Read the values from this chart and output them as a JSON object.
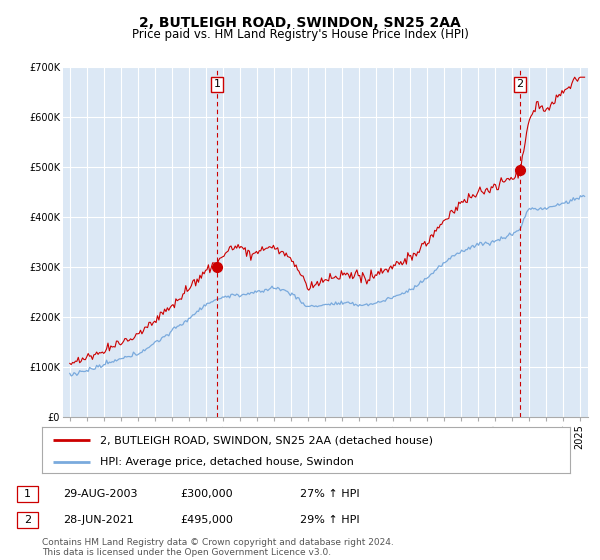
{
  "title": "2, BUTLEIGH ROAD, SWINDON, SN25 2AA",
  "subtitle": "Price paid vs. HM Land Registry's House Price Index (HPI)",
  "ylim": [
    0,
    700000
  ],
  "yticks": [
    0,
    100000,
    200000,
    300000,
    400000,
    500000,
    600000,
    700000
  ],
  "ytick_labels": [
    "£0",
    "£100K",
    "£200K",
    "£300K",
    "£400K",
    "£500K",
    "£600K",
    "£700K"
  ],
  "xlim_start": 1994.6,
  "xlim_end": 2025.5,
  "background_color": "#ffffff",
  "plot_bg_color": "#dce8f5",
  "grid_color": "#ffffff",
  "line1_color": "#cc0000",
  "line2_color": "#7aaadd",
  "marker_color": "#cc0000",
  "vline_color": "#cc0000",
  "transaction1_x": 2003.66,
  "transaction1_y": 300000,
  "transaction2_x": 2021.49,
  "transaction2_y": 495000,
  "legend_line1": "2, BUTLEIGH ROAD, SWINDON, SN25 2AA (detached house)",
  "legend_line2": "HPI: Average price, detached house, Swindon",
  "table_row1": [
    "1",
    "29-AUG-2003",
    "£300,000",
    "27% ↑ HPI"
  ],
  "table_row2": [
    "2",
    "28-JUN-2021",
    "£495,000",
    "29% ↑ HPI"
  ],
  "footnote": "Contains HM Land Registry data © Crown copyright and database right 2024.\nThis data is licensed under the Open Government Licence v3.0.",
  "title_fontsize": 10,
  "subtitle_fontsize": 8.5,
  "tick_fontsize": 7,
  "legend_fontsize": 8,
  "table_fontsize": 8,
  "footnote_fontsize": 6.5
}
